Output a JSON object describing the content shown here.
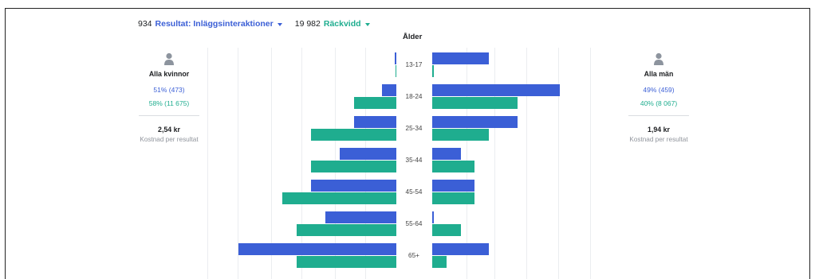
{
  "header": {
    "results_count": "934",
    "results_label": "Resultat: Inläggsinteraktioner",
    "reach_count": "19 982",
    "reach_label": "Räckvidd"
  },
  "age_title": "Ålder",
  "women": {
    "title": "Alla kvinnor",
    "results_pct": "51% (473)",
    "reach_pct": "58% (11 675)",
    "cost": "2,54 kr",
    "cost_label": "Kostnad per resultat"
  },
  "men": {
    "title": "Alla män",
    "results_pct": "49% (459)",
    "reach_pct": "40% (8 067)",
    "cost": "1,94 kr",
    "cost_label": "Kostnad per resultat"
  },
  "colors": {
    "results": "#3b5fd6",
    "reach": "#1fad8f"
  },
  "age_groups": [
    "13-17",
    "18-24",
    "25-34",
    "35-44",
    "45-54",
    "55-64",
    "65+"
  ],
  "women_bars": {
    "results": [
      0.01,
      0.09,
      0.27,
      0.36,
      0.54,
      0.45,
      1.0
    ],
    "reach": [
      0.005,
      0.27,
      0.54,
      0.54,
      0.72,
      0.63,
      0.63
    ]
  },
  "men_bars": {
    "results": [
      0.36,
      0.81,
      0.54,
      0.18,
      0.27,
      0.01,
      0.36
    ],
    "reach": [
      0.01,
      0.54,
      0.36,
      0.27,
      0.27,
      0.18,
      0.09
    ]
  }
}
